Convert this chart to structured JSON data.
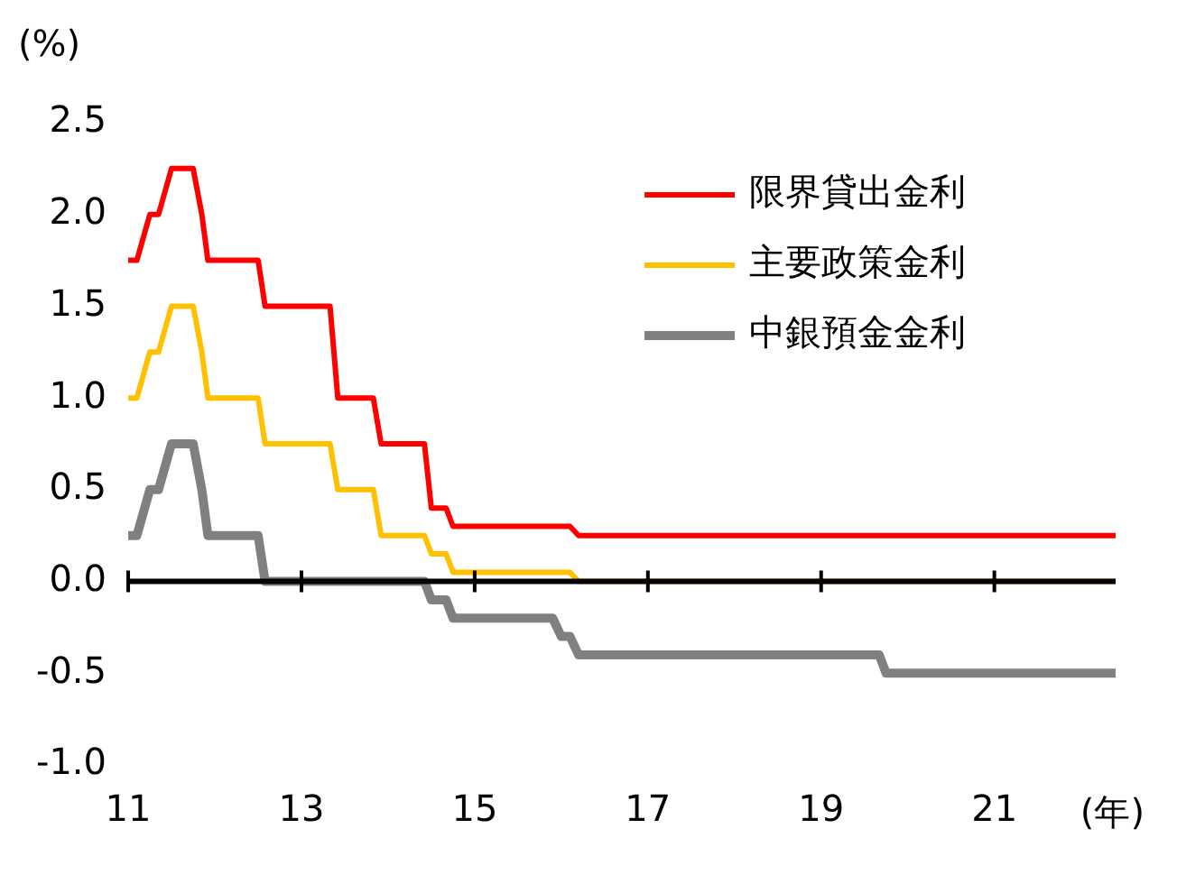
{
  "chart_data": {
    "type": "line",
    "xlabel": "(年)",
    "ylabel": "(%)",
    "xlim": [
      11,
      22.4
    ],
    "xticks": [
      11,
      13,
      15,
      17,
      19,
      21
    ],
    "ylim": [
      -1.0,
      2.5
    ],
    "yticks": [
      {
        "value": -1.0,
        "label": "-1.0"
      },
      {
        "value": -0.5,
        "label": "-0.5"
      },
      {
        "value": 0,
        "label": "0.0"
      },
      {
        "value": 0.5,
        "label": "0.5"
      },
      {
        "value": 1.0,
        "label": "1.0"
      },
      {
        "value": 1.5,
        "label": "1.5"
      },
      {
        "value": 2.0,
        "label": "2.0"
      },
      {
        "value": 2.5,
        "label": "2.5"
      }
    ],
    "grid": false,
    "legend": "top right",
    "marker": "none",
    "line_style": "solid",
    "ref_lines": [
      {
        "axis": "y",
        "value": 0,
        "color": "#000000"
      }
    ],
    "series": [
      {
        "name": "限界貸出金利",
        "color": "#ff0000",
        "x": [
          11,
          11.1,
          11.25,
          11.35,
          11.5,
          11.75,
          11.85,
          11.92,
          12.5,
          12.58,
          13.33,
          13.42,
          13.83,
          13.92,
          14.42,
          14.5,
          14.67,
          14.75,
          16.1,
          16.2,
          22.4
        ],
        "values": [
          1.75,
          1.75,
          2.0,
          2.0,
          2.25,
          2.25,
          2.0,
          1.75,
          1.75,
          1.5,
          1.5,
          1.0,
          1.0,
          0.75,
          0.75,
          0.4,
          0.4,
          0.3,
          0.3,
          0.25,
          0.25
        ]
      },
      {
        "name": "主要政策金利",
        "color": "#ffc000",
        "x": [
          11,
          11.1,
          11.25,
          11.35,
          11.5,
          11.75,
          11.85,
          11.92,
          12.5,
          12.58,
          13.33,
          13.42,
          13.83,
          13.92,
          14.42,
          14.5,
          14.67,
          14.75,
          16.1,
          16.2,
          22.4
        ],
        "values": [
          1.0,
          1.0,
          1.25,
          1.25,
          1.5,
          1.5,
          1.25,
          1.0,
          1.0,
          0.75,
          0.75,
          0.5,
          0.5,
          0.25,
          0.25,
          0.15,
          0.15,
          0.05,
          0.05,
          0,
          0
        ]
      },
      {
        "name": "中銀預金金利",
        "color": "#808080",
        "x": [
          11,
          11.1,
          11.25,
          11.35,
          11.5,
          11.75,
          11.85,
          11.92,
          12.5,
          12.58,
          14.42,
          14.5,
          14.67,
          14.75,
          15.9,
          16.0,
          16.1,
          16.2,
          19.67,
          19.75,
          22.4
        ],
        "values": [
          0.25,
          0.25,
          0.5,
          0.5,
          0.75,
          0.75,
          0.5,
          0.25,
          0.25,
          0,
          0,
          -0.1,
          -0.1,
          -0.2,
          -0.2,
          -0.3,
          -0.3,
          -0.4,
          -0.4,
          -0.5,
          -0.5
        ]
      }
    ]
  }
}
